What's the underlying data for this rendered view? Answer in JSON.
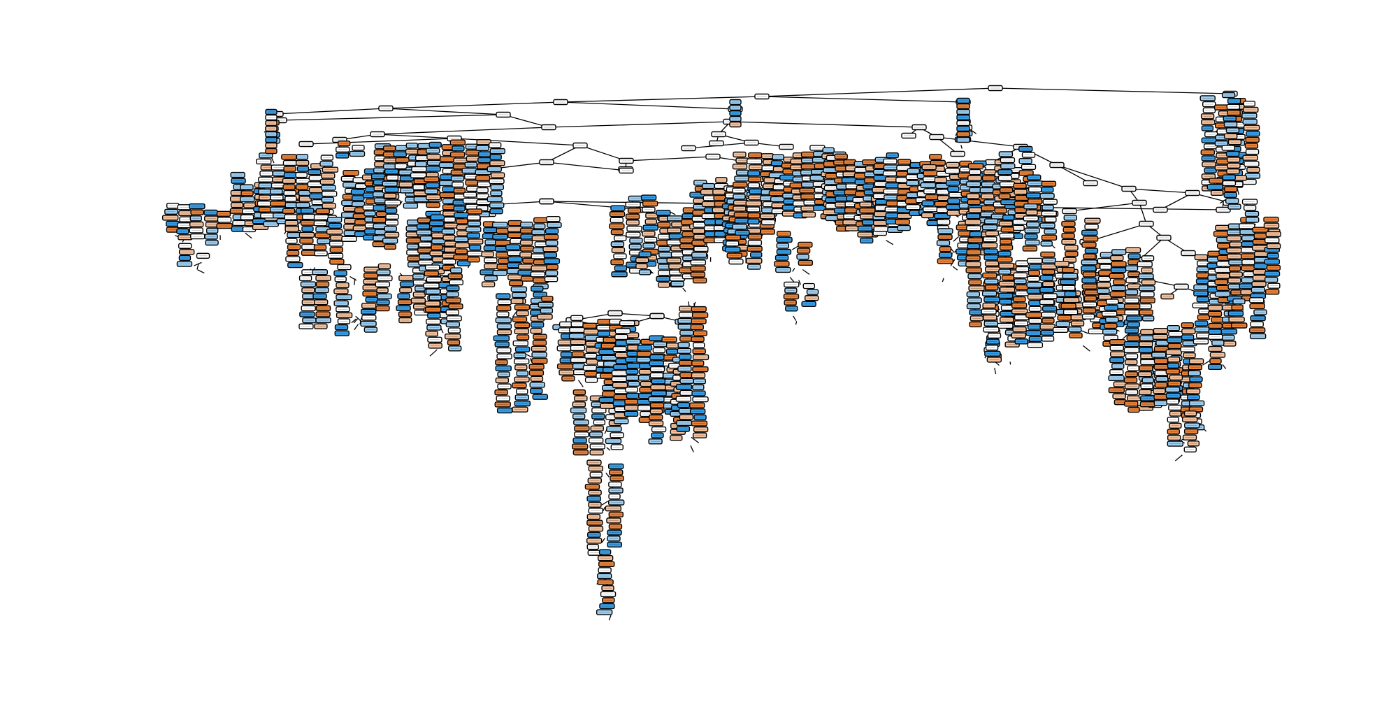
{
  "diagram": {
    "type": "decision-tree",
    "node_text_legible": false,
    "fill_colors": {
      "class_a_strong": "#e58139",
      "class_a_light": "#f2c09c",
      "class_b_strong": "#399de5",
      "class_b_light": "#9ccef2",
      "neutral": "#ffffff"
    },
    "edge_color": "#000000",
    "node_border_color": "#000000"
  }
}
